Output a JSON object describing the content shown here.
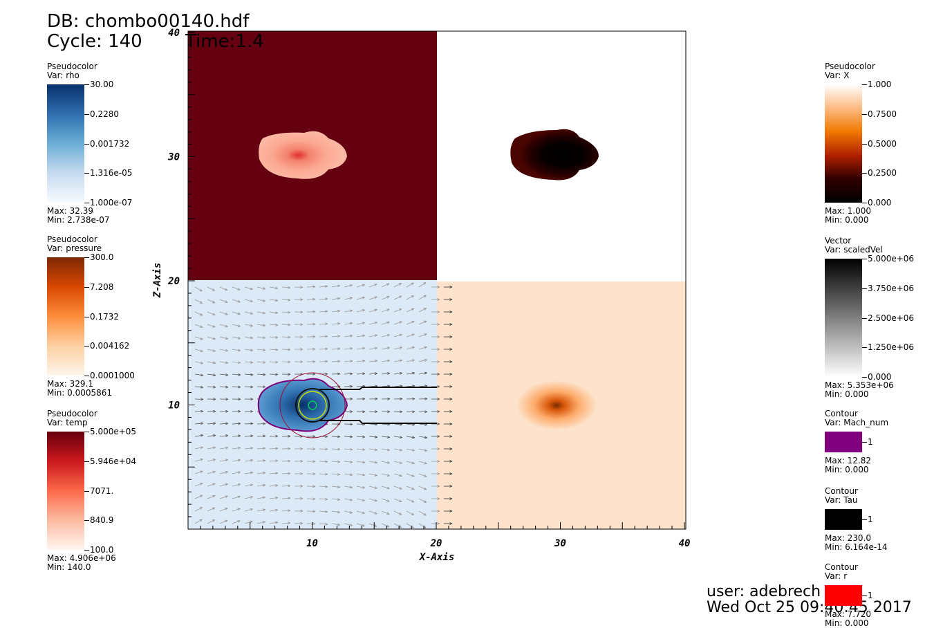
{
  "header": {
    "db": "DB: chombo00140.hdf",
    "cycle": "Cycle: 140",
    "time": "Time:1.4"
  },
  "axes": {
    "x_label": "X-Axis",
    "y_label": "Z-Axis",
    "x_ticks": [
      "10",
      "20",
      "30",
      "40"
    ],
    "y_ticks": [
      "10",
      "20",
      "30",
      "40"
    ]
  },
  "legends": [
    {
      "kind": "Pseudocolor",
      "var": "Var: rho",
      "labels": [
        "30.00",
        "0.2280",
        "0.001732",
        "1.316e-05",
        "1.000e-07"
      ],
      "max": "Max:  32.39",
      "min": "Min:  2.738e-07"
    },
    {
      "kind": "Pseudocolor",
      "var": "Var: pressure",
      "labels": [
        "300.0",
        "7.208",
        "0.1732",
        "0.004162",
        "0.0001000"
      ],
      "max": "Max:  329.1",
      "min": "Min:  0.0005861"
    },
    {
      "kind": "Pseudocolor",
      "var": "Var: temp",
      "labels": [
        "5.000e+05",
        "5.946e+04",
        "7071.",
        "840.9",
        "100.0"
      ],
      "max": "Max:  4.906e+06",
      "min": "Min:  140.0"
    },
    {
      "kind": "Pseudocolor",
      "var": "Var: X",
      "labels": [
        "1.000",
        "0.7500",
        "0.5000",
        "0.2500",
        "0.000"
      ],
      "max": "Max:  1.000",
      "min": "Min:  0.000"
    },
    {
      "kind": "Vector",
      "var": "Var: scaledVel",
      "labels": [
        "5.000e+06",
        "3.750e+06",
        "2.500e+06",
        "1.250e+06",
        "0.000"
      ],
      "max": "Max:  5.353e+06",
      "min": "Min:  0.000"
    },
    {
      "kind": "Contour",
      "var": "Var: Mach_num",
      "labels": [
        "1"
      ],
      "max": "Max:  12.82",
      "min": "Min:  0.000"
    },
    {
      "kind": "Contour",
      "var": "Var: Tau",
      "labels": [
        "1"
      ],
      "max": "Max:  230.0",
      "min": "Min:  6.164e-14"
    },
    {
      "kind": "Contour",
      "var": "Var: r",
      "labels": [
        "1"
      ],
      "max": "Max:  7.720",
      "min": "Min:  0.000"
    }
  ],
  "footer": {
    "user": "user: adebrech",
    "date": "Wed Oct 25 09:40:45 2017"
  }
}
